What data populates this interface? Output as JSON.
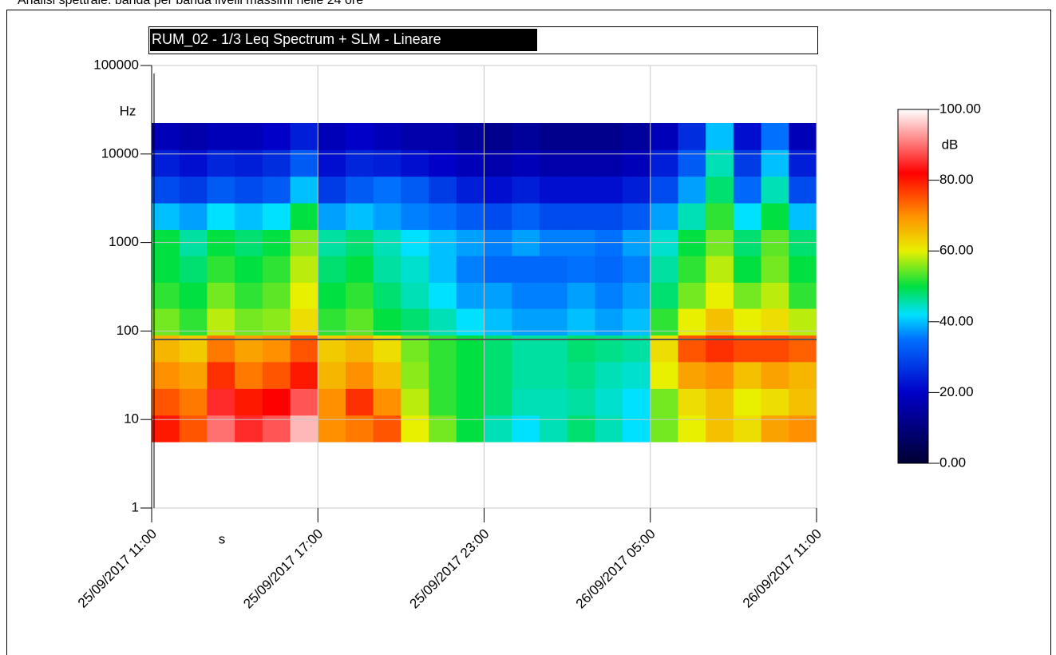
{
  "page_title": "Analisi spettrale: banda per banda livelli massimi nelle 24 ore",
  "chart_data": {
    "type": "heatmap",
    "title": "RUM_02 - 1/3 Leq Spectrum + SLM - Lineare",
    "y_label": "Hz",
    "x_label": "s",
    "colorbar_label": "dB",
    "y_log": true,
    "grid": true,
    "ylim": [
      1,
      100000
    ],
    "yticks": [
      1,
      10,
      100,
      1000,
      10000,
      100000
    ],
    "xlim": [
      "25/09/2017 11:00",
      "26/09/2017 11:00"
    ],
    "xticks": [
      "25/09/2017 11:00",
      "25/09/2017 17:00",
      "25/09/2017 23:00",
      "26/09/2017 05:00",
      "26/09/2017 11:00"
    ],
    "x": [
      "25/09/2017 11:00",
      "25/09/2017 12:00",
      "25/09/2017 13:00",
      "25/09/2017 14:00",
      "25/09/2017 15:00",
      "25/09/2017 16:00",
      "25/09/2017 17:00",
      "25/09/2017 18:00",
      "25/09/2017 19:00",
      "25/09/2017 20:00",
      "25/09/2017 21:00",
      "25/09/2017 22:00",
      "25/09/2017 23:00",
      "26/09/2017 00:00",
      "26/09/2017 01:00",
      "26/09/2017 02:00",
      "26/09/2017 03:00",
      "26/09/2017 04:00",
      "26/09/2017 05:00",
      "26/09/2017 06:00",
      "26/09/2017 07:00",
      "26/09/2017 08:00",
      "26/09/2017 09:00",
      "26/09/2017 10:00"
    ],
    "y_edges": [
      5.6,
      11.2,
      22.4,
      45,
      90,
      180,
      355,
      710,
      1400,
      2800,
      5600,
      11200,
      22400
    ],
    "z": [
      [
        80,
        75,
        90,
        85,
        88,
        95,
        70,
        72,
        75,
        60,
        55,
        50,
        45,
        42,
        45,
        48,
        45,
        42,
        55,
        60,
        65,
        62,
        68,
        70
      ],
      [
        75,
        72,
        85,
        80,
        82,
        88,
        70,
        78,
        70,
        58,
        52,
        50,
        48,
        45,
        45,
        46,
        44,
        42,
        55,
        62,
        65,
        60,
        62,
        65
      ],
      [
        70,
        68,
        78,
        72,
        75,
        80,
        66,
        70,
        65,
        56,
        52,
        50,
        48,
        46,
        46,
        47,
        45,
        44,
        60,
        68,
        70,
        65,
        68,
        66
      ],
      [
        66,
        64,
        72,
        68,
        70,
        75,
        64,
        66,
        62,
        55,
        52,
        50,
        48,
        46,
        46,
        48,
        47,
        46,
        62,
        75,
        78,
        76,
        76,
        74
      ],
      [
        55,
        52,
        58,
        55,
        56,
        62,
        52,
        54,
        50,
        48,
        45,
        42,
        40,
        38,
        38,
        40,
        38,
        40,
        52,
        60,
        65,
        60,
        62,
        58
      ],
      [
        52,
        50,
        55,
        52,
        54,
        60,
        50,
        52,
        48,
        45,
        42,
        38,
        38,
        36,
        36,
        38,
        36,
        38,
        48,
        55,
        60,
        55,
        58,
        52
      ],
      [
        50,
        48,
        52,
        50,
        52,
        58,
        48,
        50,
        46,
        44,
        40,
        36,
        34,
        34,
        34,
        35,
        34,
        36,
        46,
        52,
        58,
        50,
        55,
        50
      ],
      [
        50,
        46,
        50,
        48,
        50,
        56,
        46,
        48,
        45,
        42,
        40,
        38,
        36,
        38,
        36,
        36,
        35,
        38,
        44,
        50,
        55,
        48,
        54,
        48
      ],
      [
        40,
        38,
        42,
        40,
        42,
        50,
        38,
        40,
        38,
        36,
        35,
        32,
        30,
        33,
        30,
        30,
        30,
        32,
        38,
        45,
        52,
        42,
        50,
        40
      ],
      [
        30,
        28,
        32,
        30,
        32,
        40,
        28,
        32,
        35,
        32,
        28,
        24,
        22,
        24,
        22,
        22,
        22,
        24,
        30,
        38,
        48,
        34,
        45,
        30
      ],
      [
        24,
        22,
        25,
        24,
        26,
        32,
        22,
        25,
        24,
        22,
        20,
        18,
        16,
        18,
        16,
        16,
        16,
        18,
        24,
        32,
        45,
        28,
        40,
        24
      ],
      [
        18,
        16,
        18,
        18,
        20,
        24,
        18,
        20,
        18,
        16,
        16,
        14,
        12,
        14,
        12,
        12,
        12,
        14,
        18,
        26,
        40,
        22,
        35,
        18
      ]
    ],
    "zlim": [
      0,
      100
    ],
    "zticks": [
      {
        "value": 0,
        "label": "0.00"
      },
      {
        "value": 20,
        "label": "20.00"
      },
      {
        "value": 40,
        "label": "40.00"
      },
      {
        "value": 60,
        "label": "60.00"
      },
      {
        "value": 80,
        "label": "80.00"
      },
      {
        "value": 100,
        "label": "100.00"
      }
    ],
    "colorscale": [
      [
        0,
        "#000033"
      ],
      [
        20,
        "#0000c8"
      ],
      [
        35,
        "#0070ff"
      ],
      [
        42,
        "#00e0ff"
      ],
      [
        50,
        "#00e040"
      ],
      [
        60,
        "#e8f000"
      ],
      [
        70,
        "#ff9000"
      ],
      [
        82,
        "#ff0000"
      ],
      [
        100,
        "#ffffff"
      ]
    ]
  }
}
